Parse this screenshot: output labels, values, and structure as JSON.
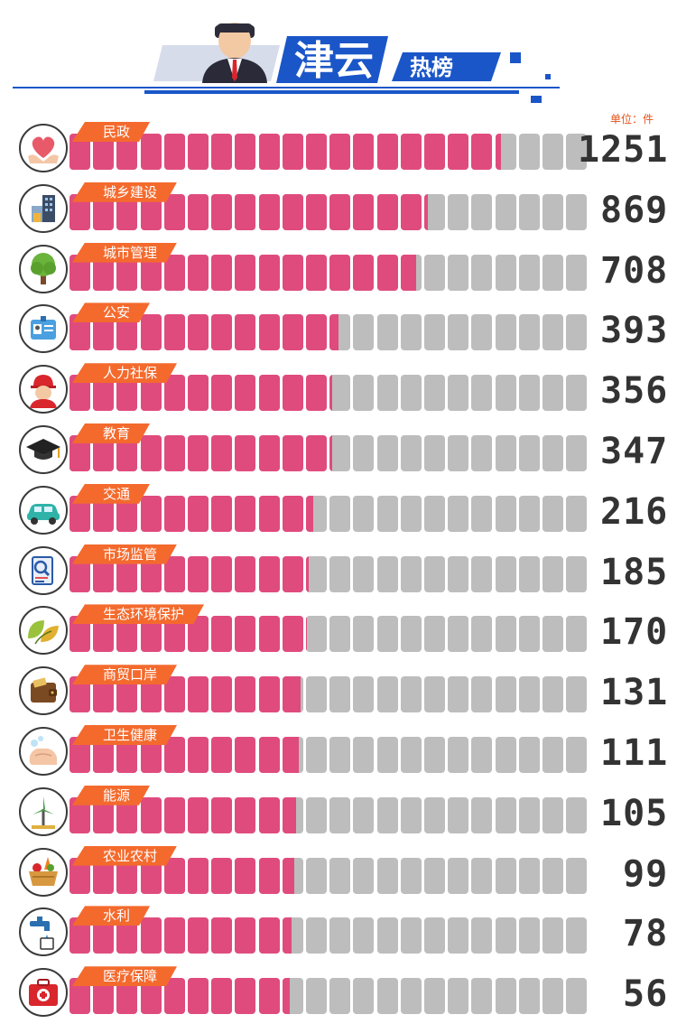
{
  "header": {
    "title": "津云",
    "subtitle": "热榜"
  },
  "unit_label": "单位：件",
  "colors": {
    "bar_fill": "#e04b7e",
    "bar_empty": "#bdbdbd",
    "tag": "#f46a2d",
    "brand_blue": "#1a56c8"
  },
  "chart_data": {
    "type": "bar",
    "orientation": "horizontal",
    "unit": "件",
    "max_scale": 1500,
    "categories": [
      "民政",
      "城乡建设",
      "城市管理",
      "公安",
      "人力社保",
      "教育",
      "交通",
      "市场监管",
      "生态环境保护",
      "商贸口岸",
      "卫生健康",
      "能源",
      "农业农村",
      "水利",
      "医疗保障"
    ],
    "values": [
      1251,
      869,
      708,
      393,
      356,
      347,
      216,
      185,
      170,
      131,
      111,
      105,
      99,
      78,
      56
    ],
    "fill_fractions": [
      0.83,
      0.69,
      0.67,
      0.52,
      0.505,
      0.505,
      0.47,
      0.46,
      0.455,
      0.45,
      0.445,
      0.44,
      0.435,
      0.43,
      0.425
    ],
    "icons": [
      "heart-hands-icon",
      "buildings-icon",
      "tree-icon",
      "id-badge-icon",
      "worker-helmet-icon",
      "graduation-cap-icon",
      "car-icon",
      "inspection-clipboard-icon",
      "leaves-icon",
      "wallet-icon",
      "washing-hands-icon",
      "wind-turbine-icon",
      "vegetable-basket-icon",
      "water-faucet-icon",
      "first-aid-kit-icon"
    ]
  }
}
